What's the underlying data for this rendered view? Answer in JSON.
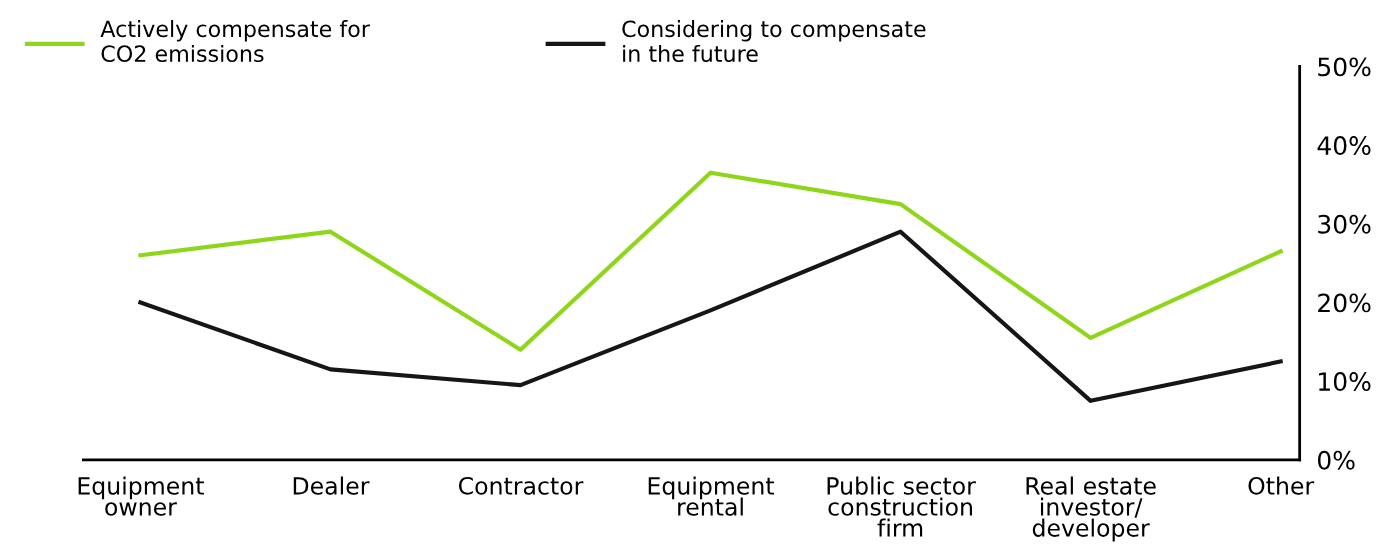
{
  "chart_data": {
    "type": "line",
    "categories": [
      "Equipment\nowner",
      "Dealer",
      "Contractor",
      "Equipment\nrental",
      "Public sector\nconstruction\nfirm",
      "Real estate\ninvestor/\ndeveloper",
      "Other"
    ],
    "series": [
      {
        "name": "Actively compensate for\nCO2 emissions",
        "color": "#8fd61a",
        "values": [
          26,
          29,
          14,
          36.5,
          32.5,
          15.5,
          26.5
        ]
      },
      {
        "name": "Considering to compensate\nin the future",
        "color": "#161616",
        "values": [
          20,
          11.5,
          9.5,
          19,
          29,
          7.5,
          12.5
        ]
      }
    ],
    "ylim": [
      0,
      50
    ],
    "yticks": [
      {
        "value": 0,
        "label": "0%"
      },
      {
        "value": 10,
        "label": "10%"
      },
      {
        "value": 20,
        "label": "20%"
      },
      {
        "value": 30,
        "label": "30%"
      },
      {
        "value": 40,
        "label": "40%"
      },
      {
        "value": 50,
        "label": "50%"
      }
    ],
    "grid": false,
    "legend": "top left",
    "marker": "none",
    "line_style": "solid"
  }
}
